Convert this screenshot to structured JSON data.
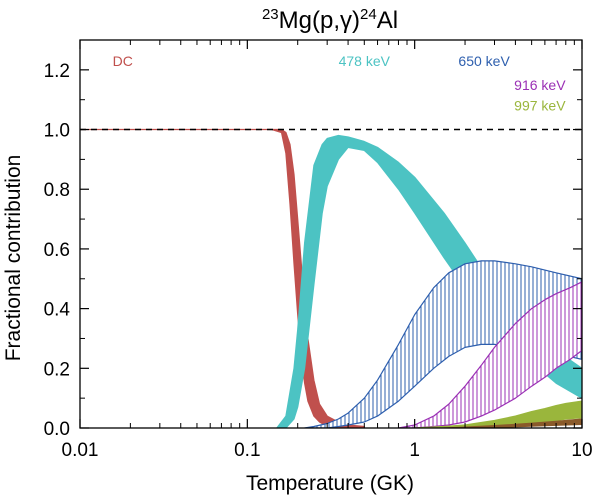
{
  "chart_data": {
    "type": "area",
    "title": {
      "sup1": "23",
      "main1": "Mg(p,",
      "gamma": "γ",
      "main2": ")",
      "sup2": "24",
      "main3": "Al"
    },
    "xlabel": "Temperature (GK)",
    "ylabel": "Fractional contribution",
    "xscale": "log",
    "xlim": [
      0.01,
      10
    ],
    "ylim": [
      0,
      1.3
    ],
    "xticks": [
      {
        "value": 0.01,
        "label": "0.01"
      },
      {
        "value": 0.1,
        "label": "0.1"
      },
      {
        "value": 1,
        "label": "1"
      },
      {
        "value": 10,
        "label": "10"
      }
    ],
    "yticks": [
      {
        "value": 0.0,
        "label": "0.0"
      },
      {
        "value": 0.2,
        "label": "0.2"
      },
      {
        "value": 0.4,
        "label": "0.4"
      },
      {
        "value": 0.6,
        "label": "0.6"
      },
      {
        "value": 0.8,
        "label": "0.8"
      },
      {
        "value": 1.0,
        "label": "1.0"
      },
      {
        "value": 1.2,
        "label": "1.2"
      }
    ],
    "reference_line": {
      "y": 1.0,
      "style": "dashed"
    },
    "grid": false,
    "series": [
      {
        "name": "DC",
        "color": "#c0504d",
        "fill": "solid",
        "label_pos": {
          "x": 0.018,
          "y": 1.23
        },
        "x": [
          0.01,
          0.1,
          0.14,
          0.16,
          0.17,
          0.18,
          0.19,
          0.2,
          0.21,
          0.22,
          0.23,
          0.25,
          0.27,
          0.3,
          0.35,
          0.4,
          0.5
        ],
        "upper": [
          1.0,
          1.0,
          1.0,
          1.0,
          0.99,
          0.95,
          0.85,
          0.7,
          0.55,
          0.42,
          0.3,
          0.16,
          0.08,
          0.04,
          0.02,
          0.01,
          0.005
        ],
        "lower": [
          1.0,
          1.0,
          1.0,
          0.99,
          0.92,
          0.75,
          0.55,
          0.38,
          0.24,
          0.15,
          0.09,
          0.04,
          0.02,
          0.005,
          0.0,
          0.0,
          0.0
        ]
      },
      {
        "name": "478 keV",
        "color": "#4cc3c3",
        "fill": "solid",
        "label_pos": {
          "x": 0.5,
          "y": 1.23
        },
        "x": [
          0.15,
          0.17,
          0.19,
          0.2,
          0.22,
          0.25,
          0.28,
          0.3,
          0.35,
          0.4,
          0.5,
          0.6,
          0.8,
          1.0,
          1.5,
          2,
          3,
          5,
          7,
          10
        ],
        "upper": [
          0.0,
          0.04,
          0.2,
          0.33,
          0.62,
          0.88,
          0.95,
          0.97,
          0.98,
          0.975,
          0.96,
          0.94,
          0.89,
          0.84,
          0.72,
          0.62,
          0.47,
          0.33,
          0.26,
          0.2
        ],
        "lower": [
          0.0,
          0.0,
          0.03,
          0.07,
          0.2,
          0.48,
          0.72,
          0.81,
          0.9,
          0.94,
          0.93,
          0.89,
          0.8,
          0.72,
          0.57,
          0.47,
          0.35,
          0.22,
          0.15,
          0.1
        ]
      },
      {
        "name": "650 keV",
        "color": "#2e5fae",
        "fill": "hatched",
        "label_pos": {
          "x": 2.6,
          "y": 1.23
        },
        "x": [
          0.22,
          0.25,
          0.3,
          0.35,
          0.4,
          0.5,
          0.6,
          0.8,
          1.0,
          1.3,
          1.6,
          2,
          2.5,
          3,
          4,
          5,
          7,
          10
        ],
        "upper": [
          0.0,
          0.005,
          0.015,
          0.03,
          0.05,
          0.1,
          0.16,
          0.28,
          0.38,
          0.47,
          0.52,
          0.55,
          0.56,
          0.56,
          0.55,
          0.54,
          0.52,
          0.5
        ],
        "lower": [
          0.0,
          0.0,
          0.0,
          0.005,
          0.01,
          0.02,
          0.04,
          0.09,
          0.14,
          0.2,
          0.24,
          0.27,
          0.28,
          0.28,
          0.27,
          0.26,
          0.25,
          0.23
        ]
      },
      {
        "name": "916 keV",
        "color": "#9b30b5",
        "fill": "hatched",
        "label_pos": {
          "x": 5.6,
          "y": 1.15
        },
        "x": [
          0.8,
          1.0,
          1.3,
          1.6,
          2.0,
          2.5,
          3.0,
          4.0,
          5.0,
          6.0,
          7.0,
          8.5,
          10
        ],
        "upper": [
          0.0,
          0.01,
          0.04,
          0.08,
          0.14,
          0.21,
          0.27,
          0.35,
          0.4,
          0.43,
          0.45,
          0.47,
          0.49
        ],
        "lower": [
          0.0,
          0.0,
          0.005,
          0.01,
          0.02,
          0.04,
          0.06,
          0.1,
          0.14,
          0.17,
          0.2,
          0.23,
          0.26
        ]
      },
      {
        "name": "997 keV",
        "color": "#9ab63c",
        "fill": "solid",
        "label_pos": {
          "x": 5.6,
          "y": 1.08
        },
        "x": [
          1.0,
          1.5,
          2.0,
          3.0,
          4.0,
          5.0,
          6.0,
          7.0,
          8.0,
          10
        ],
        "upper": [
          0.0,
          0.005,
          0.01,
          0.025,
          0.04,
          0.055,
          0.065,
          0.075,
          0.082,
          0.09
        ],
        "lower": [
          0.0,
          0.0,
          0.0,
          0.005,
          0.01,
          0.015,
          0.02,
          0.025,
          0.03,
          0.035
        ]
      },
      {
        "name": "",
        "color": "#8a5a2b",
        "fill": "solid",
        "label_pos": null,
        "x": [
          1.5,
          2.0,
          3.0,
          4.0,
          5.0,
          7.0,
          10
        ],
        "upper": [
          0.0,
          0.003,
          0.008,
          0.012,
          0.016,
          0.022,
          0.03
        ],
        "lower": [
          0.0,
          0.0,
          0.002,
          0.004,
          0.006,
          0.009,
          0.012
        ]
      }
    ]
  }
}
